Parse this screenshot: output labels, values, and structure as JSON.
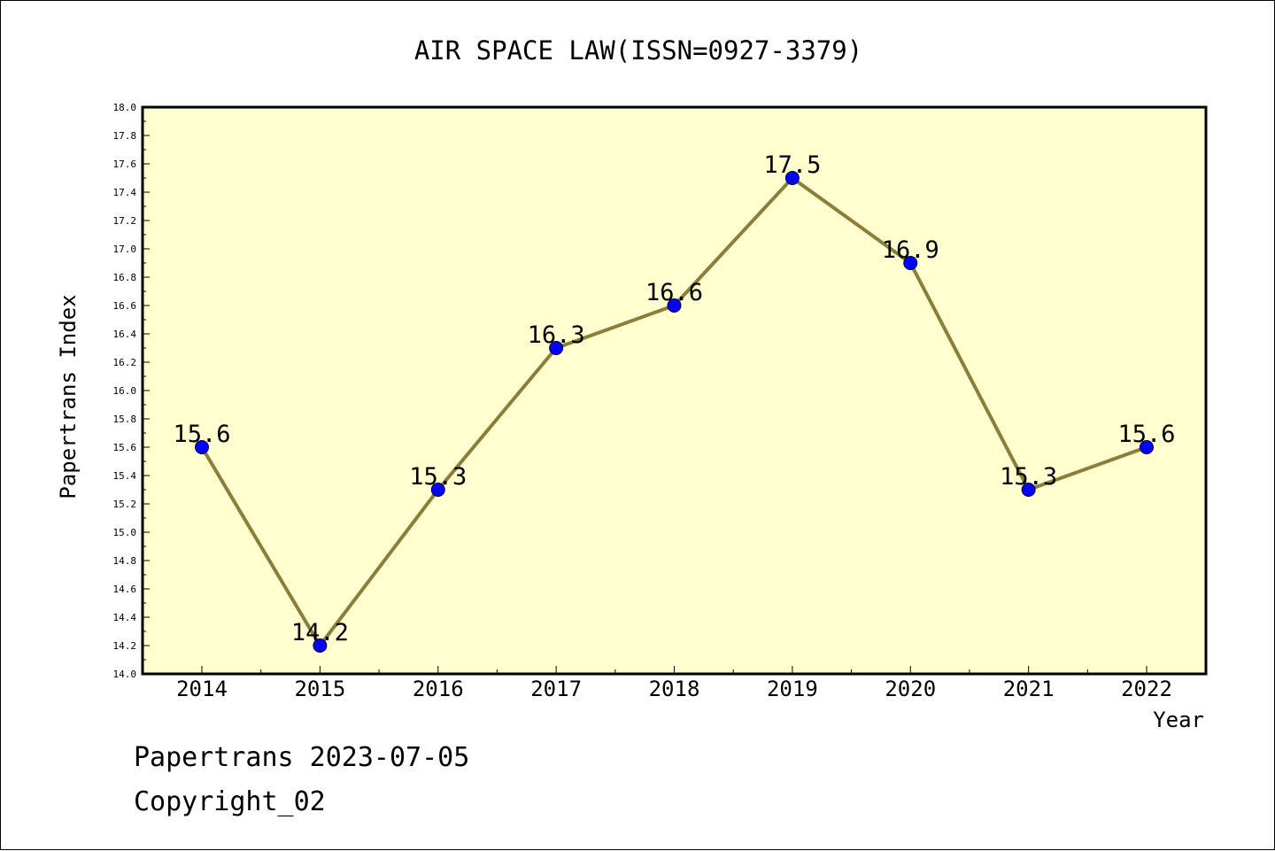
{
  "chart_data": {
    "type": "line",
    "title": "AIR SPACE LAW(ISSN=0927-3379)",
    "xlabel": "Year",
    "ylabel": "Papertrans Index",
    "x": [
      "2014",
      "2015",
      "2016",
      "2017",
      "2018",
      "2019",
      "2020",
      "2021",
      "2022"
    ],
    "series": [
      {
        "values": [
          15.6,
          14.2,
          15.3,
          16.3,
          16.6,
          17.5,
          16.9,
          15.3,
          15.6
        ],
        "data_labels": [
          "15.6",
          "14.2",
          "15.3",
          "16.3",
          "16.6",
          "17.5",
          "16.9",
          "15.3",
          "15.6"
        ],
        "line_color": "#8b7d3a",
        "marker_color": "#0000ff"
      }
    ],
    "ylim": [
      14.0,
      18.0
    ],
    "yticks": [
      "14.0",
      "14.2",
      "14.4",
      "14.6",
      "14.8",
      "15.0",
      "15.2",
      "15.4",
      "15.6",
      "15.8",
      "16.0",
      "16.2",
      "16.4",
      "16.6",
      "16.8",
      "17.0",
      "17.2",
      "17.4",
      "17.6",
      "17.8",
      "18.0"
    ],
    "plot_background": "#ffffd0",
    "grid": false,
    "legend": "none"
  },
  "footer": {
    "line1": "Papertrans 2023-07-05",
    "line2": "Copyright_02"
  }
}
